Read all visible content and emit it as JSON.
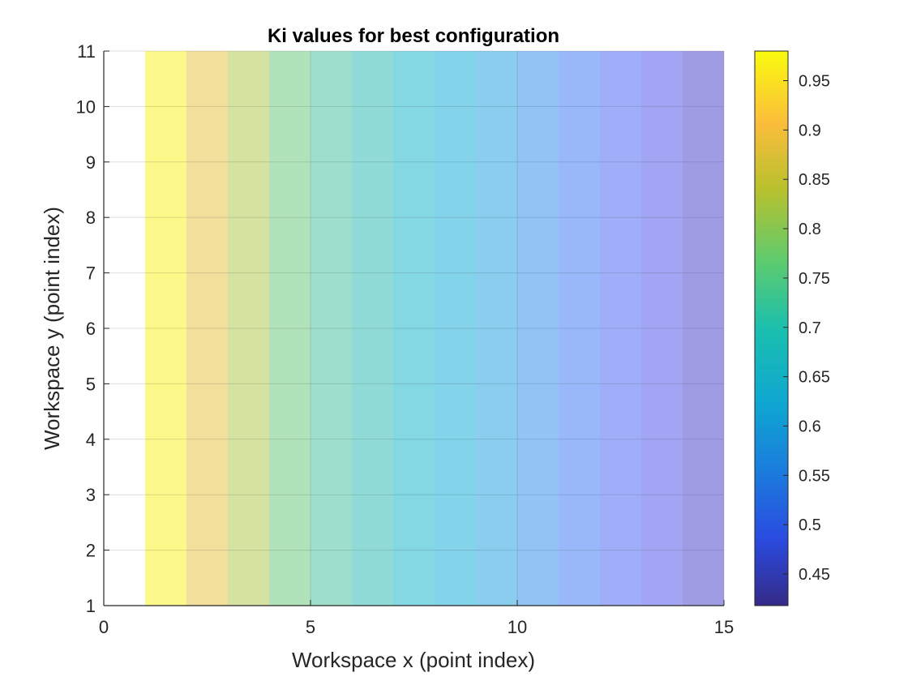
{
  "chart_data": {
    "type": "heatmap",
    "title": "Ki values for best configuration",
    "xlabel": "Workspace x (point index)",
    "ylabel": "Workspace y (point index)",
    "xlim": [
      0,
      15
    ],
    "ylim": [
      1,
      11
    ],
    "x_ticks": [
      "0",
      "5",
      "10",
      "15"
    ],
    "y_ticks": [
      "1",
      "2",
      "3",
      "4",
      "5",
      "6",
      "7",
      "8",
      "9",
      "10",
      "11"
    ],
    "grid": true,
    "colormap": "parula",
    "alpha": 0.5,
    "colorbar": {
      "range": [
        0.418,
        0.98
      ],
      "ticks": [
        "0.45",
        "0.5",
        "0.55",
        "0.6",
        "0.65",
        "0.7",
        "0.75",
        "0.8",
        "0.85",
        "0.9",
        "0.95"
      ]
    },
    "column_edges": [
      1,
      2,
      3,
      4,
      5,
      6,
      7,
      8,
      9,
      10,
      11,
      12,
      13,
      14,
      15
    ],
    "column_values": [
      0.97,
      0.895,
      0.845,
      0.79,
      0.75,
      0.715,
      0.68,
      0.645,
      0.605,
      0.565,
      0.525,
      0.495,
      0.47,
      0.445
    ]
  }
}
